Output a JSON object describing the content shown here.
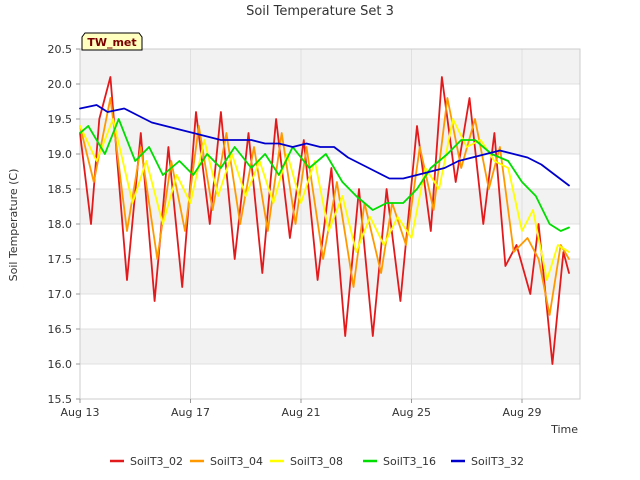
{
  "chart_data": {
    "type": "line",
    "title": "Soil Temperature Set 3",
    "xlabel": "Time",
    "ylabel": "Soil Temperature (C)",
    "badge": "TW_met",
    "ylim": [
      15.5,
      20.5
    ],
    "xlim": [
      0,
      18.1
    ],
    "y_ticks": [
      "15.5",
      "16.0",
      "16.5",
      "17.0",
      "17.5",
      "18.0",
      "18.5",
      "19.0",
      "19.5",
      "20.0",
      "20.5"
    ],
    "x_ticks": [
      {
        "label": "Aug 13",
        "value": 0
      },
      {
        "label": "Aug 17",
        "value": 4
      },
      {
        "label": "Aug 21",
        "value": 8
      },
      {
        "label": "Aug 25",
        "value": 12
      },
      {
        "label": "Aug 29",
        "value": 16
      }
    ],
    "x_unit": "days after Aug 13",
    "grid": true,
    "legend_position": "bottom",
    "series": [
      {
        "name": "SoilT3_02",
        "color": "#e31a1c",
        "points": [
          [
            0.0,
            19.3
          ],
          [
            0.4,
            18.0
          ],
          [
            0.7,
            19.5
          ],
          [
            1.1,
            20.1
          ],
          [
            1.7,
            17.2
          ],
          [
            2.2,
            19.3
          ],
          [
            2.7,
            16.9
          ],
          [
            3.2,
            19.1
          ],
          [
            3.7,
            17.1
          ],
          [
            4.2,
            19.6
          ],
          [
            4.7,
            18.0
          ],
          [
            5.1,
            19.6
          ],
          [
            5.6,
            17.5
          ],
          [
            6.1,
            19.3
          ],
          [
            6.6,
            17.3
          ],
          [
            7.1,
            19.5
          ],
          [
            7.6,
            17.8
          ],
          [
            8.1,
            19.2
          ],
          [
            8.6,
            17.2
          ],
          [
            9.1,
            18.8
          ],
          [
            9.6,
            16.4
          ],
          [
            10.1,
            18.5
          ],
          [
            10.6,
            16.4
          ],
          [
            11.1,
            18.5
          ],
          [
            11.6,
            16.9
          ],
          [
            12.2,
            19.4
          ],
          [
            12.7,
            17.9
          ],
          [
            13.1,
            20.1
          ],
          [
            13.6,
            18.6
          ],
          [
            14.1,
            19.8
          ],
          [
            14.6,
            18.0
          ],
          [
            15.0,
            19.3
          ],
          [
            15.4,
            17.4
          ],
          [
            15.8,
            17.7
          ],
          [
            16.3,
            17.0
          ],
          [
            16.6,
            18.0
          ],
          [
            17.1,
            16.0
          ],
          [
            17.5,
            17.6
          ],
          [
            17.7,
            17.3
          ]
        ]
      },
      {
        "name": "SoilT3_04",
        "color": "#ff9900",
        "points": [
          [
            0.0,
            19.4
          ],
          [
            0.5,
            18.6
          ],
          [
            1.1,
            19.8
          ],
          [
            1.7,
            17.9
          ],
          [
            2.2,
            19.1
          ],
          [
            2.8,
            17.5
          ],
          [
            3.3,
            18.9
          ],
          [
            3.8,
            17.9
          ],
          [
            4.3,
            19.4
          ],
          [
            4.8,
            18.2
          ],
          [
            5.3,
            19.3
          ],
          [
            5.8,
            18.0
          ],
          [
            6.3,
            19.1
          ],
          [
            6.8,
            17.9
          ],
          [
            7.3,
            19.3
          ],
          [
            7.8,
            18.0
          ],
          [
            8.2,
            19.1
          ],
          [
            8.8,
            17.5
          ],
          [
            9.3,
            18.6
          ],
          [
            9.9,
            17.1
          ],
          [
            10.3,
            18.3
          ],
          [
            10.9,
            17.3
          ],
          [
            11.3,
            18.3
          ],
          [
            11.8,
            17.7
          ],
          [
            12.3,
            19.1
          ],
          [
            12.8,
            18.2
          ],
          [
            13.3,
            19.8
          ],
          [
            13.8,
            18.8
          ],
          [
            14.3,
            19.5
          ],
          [
            14.8,
            18.5
          ],
          [
            15.2,
            19.1
          ],
          [
            15.7,
            17.6
          ],
          [
            16.2,
            17.8
          ],
          [
            16.6,
            17.5
          ],
          [
            17.0,
            16.7
          ],
          [
            17.4,
            17.7
          ],
          [
            17.7,
            17.5
          ]
        ]
      },
      {
        "name": "SoilT3_08",
        "color": "#ffff00",
        "points": [
          [
            0.0,
            19.4
          ],
          [
            0.6,
            18.9
          ],
          [
            1.2,
            19.5
          ],
          [
            1.9,
            18.3
          ],
          [
            2.4,
            18.9
          ],
          [
            3.0,
            18.0
          ],
          [
            3.5,
            18.7
          ],
          [
            4.0,
            18.3
          ],
          [
            4.5,
            19.2
          ],
          [
            5.0,
            18.4
          ],
          [
            5.5,
            19.0
          ],
          [
            6.0,
            18.4
          ],
          [
            6.5,
            18.9
          ],
          [
            7.0,
            18.3
          ],
          [
            7.5,
            19.0
          ],
          [
            8.0,
            18.3
          ],
          [
            8.5,
            18.9
          ],
          [
            9.0,
            17.9
          ],
          [
            9.5,
            18.4
          ],
          [
            10.0,
            17.6
          ],
          [
            10.5,
            18.1
          ],
          [
            11.0,
            17.7
          ],
          [
            11.5,
            18.1
          ],
          [
            12.0,
            17.8
          ],
          [
            12.5,
            18.8
          ],
          [
            13.0,
            18.5
          ],
          [
            13.5,
            19.5
          ],
          [
            14.0,
            19.1
          ],
          [
            14.5,
            19.2
          ],
          [
            15.0,
            18.9
          ],
          [
            15.5,
            18.8
          ],
          [
            16.0,
            17.9
          ],
          [
            16.4,
            18.2
          ],
          [
            16.9,
            17.2
          ],
          [
            17.3,
            17.7
          ],
          [
            17.7,
            17.6
          ]
        ]
      },
      {
        "name": "SoilT3_16",
        "color": "#00dd00",
        "points": [
          [
            0.0,
            19.3
          ],
          [
            0.3,
            19.4
          ],
          [
            0.9,
            19.0
          ],
          [
            1.4,
            19.5
          ],
          [
            2.0,
            18.9
          ],
          [
            2.5,
            19.1
          ],
          [
            3.0,
            18.7
          ],
          [
            3.6,
            18.9
          ],
          [
            4.1,
            18.7
          ],
          [
            4.6,
            19.0
          ],
          [
            5.1,
            18.8
          ],
          [
            5.6,
            19.1
          ],
          [
            6.2,
            18.8
          ],
          [
            6.7,
            19.0
          ],
          [
            7.2,
            18.7
          ],
          [
            7.7,
            19.1
          ],
          [
            8.3,
            18.8
          ],
          [
            8.9,
            19.0
          ],
          [
            9.5,
            18.6
          ],
          [
            10.0,
            18.4
          ],
          [
            10.6,
            18.2
          ],
          [
            11.1,
            18.3
          ],
          [
            11.7,
            18.3
          ],
          [
            12.2,
            18.5
          ],
          [
            12.7,
            18.8
          ],
          [
            13.3,
            19.0
          ],
          [
            13.8,
            19.2
          ],
          [
            14.3,
            19.2
          ],
          [
            14.9,
            19.0
          ],
          [
            15.5,
            18.9
          ],
          [
            16.0,
            18.6
          ],
          [
            16.5,
            18.4
          ],
          [
            17.0,
            18.0
          ],
          [
            17.4,
            17.9
          ],
          [
            17.7,
            17.95
          ]
        ]
      },
      {
        "name": "SoilT3_32",
        "color": "#0000cc",
        "points": [
          [
            0.0,
            19.65
          ],
          [
            0.6,
            19.7
          ],
          [
            1.0,
            19.6
          ],
          [
            1.6,
            19.65
          ],
          [
            2.1,
            19.55
          ],
          [
            2.6,
            19.45
          ],
          [
            3.1,
            19.4
          ],
          [
            3.6,
            19.35
          ],
          [
            4.1,
            19.3
          ],
          [
            4.6,
            19.25
          ],
          [
            5.1,
            19.2
          ],
          [
            5.6,
            19.2
          ],
          [
            6.2,
            19.2
          ],
          [
            6.7,
            19.15
          ],
          [
            7.2,
            19.15
          ],
          [
            7.7,
            19.1
          ],
          [
            8.2,
            19.15
          ],
          [
            8.7,
            19.1
          ],
          [
            9.2,
            19.1
          ],
          [
            9.7,
            18.95
          ],
          [
            10.2,
            18.85
          ],
          [
            10.7,
            18.75
          ],
          [
            11.2,
            18.65
          ],
          [
            11.7,
            18.65
          ],
          [
            12.2,
            18.7
          ],
          [
            12.7,
            18.75
          ],
          [
            13.2,
            18.8
          ],
          [
            13.7,
            18.9
          ],
          [
            14.2,
            18.95
          ],
          [
            14.7,
            19.0
          ],
          [
            15.2,
            19.05
          ],
          [
            15.7,
            19.0
          ],
          [
            16.2,
            18.95
          ],
          [
            16.7,
            18.85
          ],
          [
            17.2,
            18.7
          ],
          [
            17.7,
            18.55
          ]
        ]
      }
    ]
  }
}
